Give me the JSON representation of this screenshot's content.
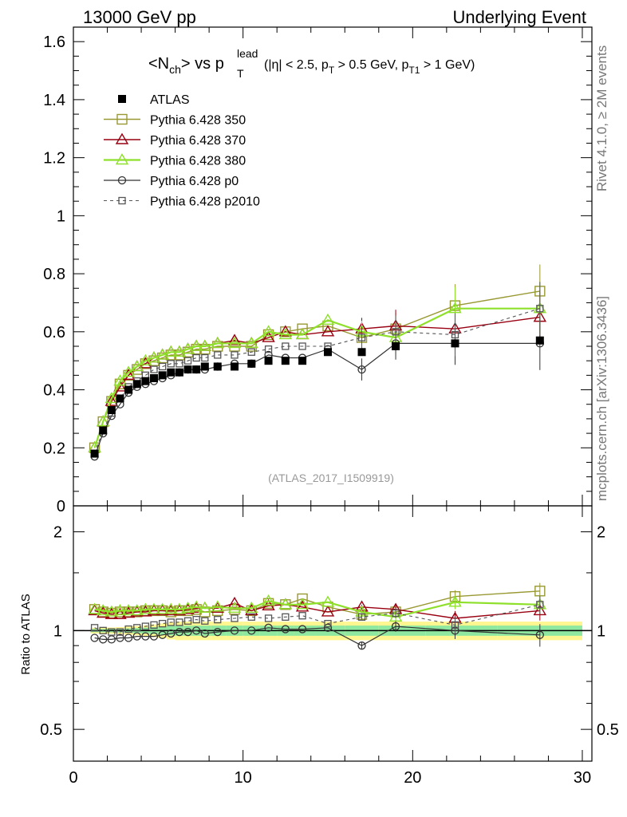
{
  "header": {
    "left": "13000 GeV pp",
    "right": "Underlying Event"
  },
  "side_labels": {
    "rivet": "Rivet 4.1.0, ≥ 2M events",
    "mcplots": "mcplots.cern.ch [arXiv:1306.3436]"
  },
  "watermark": "(ATLAS_2017_I1509919)",
  "title": {
    "main": "<N",
    "main_sub": "ch",
    "main_mid": "> vs p",
    "pt_sup": "lead",
    "pt_sub": "T",
    "cuts_a": "(|η| < 2.5, p",
    "cuts_a_sub": "T",
    "cuts_b": " > 0.5 GeV, p",
    "cuts_b_sub": "T1",
    "cuts_c": " > 1 GeV)"
  },
  "colors": {
    "atlas": "#000000",
    "p350": "#999933",
    "p370": "#990011",
    "p380": "#8ee02b",
    "p0": "#333333",
    "p2010": "#555555",
    "band_inner": "#8ee8a0",
    "band_outer": "#fff68f"
  },
  "chart_data": {
    "type": "scatter",
    "xlabel": "",
    "ylabel": "",
    "xlim": [
      0,
      30
    ],
    "ylim": [
      0,
      1.65
    ],
    "ratio_ylabel": "Ratio to ATLAS",
    "ratio_ylim": [
      0.4,
      2.4
    ],
    "main_y_ticks": [
      "0",
      "0.2",
      "0.4",
      "0.6",
      "0.8",
      "1",
      "1.2",
      "1.4",
      "1.6"
    ],
    "x_ticks": [
      "0",
      "10",
      "20",
      "30"
    ],
    "ratio_y_ticks": [
      "0.5",
      "1",
      "2"
    ],
    "x": [
      1.25,
      1.75,
      2.25,
      2.75,
      3.25,
      3.75,
      4.25,
      4.75,
      5.25,
      5.75,
      6.25,
      6.75,
      7.25,
      7.75,
      8.5,
      9.5,
      10.5,
      11.5,
      12.5,
      13.5,
      15.0,
      17.0,
      19.0,
      22.5,
      27.5
    ],
    "series": [
      {
        "name": "ATLAS",
        "key": "atlas",
        "values": [
          0.18,
          0.26,
          0.33,
          0.37,
          0.4,
          0.42,
          0.43,
          0.44,
          0.45,
          0.46,
          0.46,
          0.47,
          0.47,
          0.48,
          0.48,
          0.48,
          0.49,
          0.5,
          0.5,
          0.5,
          0.53,
          0.53,
          0.55,
          0.56,
          0.57
        ]
      },
      {
        "name": "Pythia 6.428 350",
        "key": "p350",
        "values": [
          0.2,
          0.29,
          0.36,
          0.42,
          0.45,
          0.47,
          0.49,
          0.5,
          0.51,
          0.52,
          0.52,
          0.53,
          0.54,
          0.54,
          0.55,
          0.55,
          0.55,
          0.59,
          0.6,
          0.61,
          0.62,
          0.58,
          0.61,
          0.69,
          0.74
        ]
      },
      {
        "name": "Pythia 6.428 370",
        "key": "p370",
        "values": [
          0.2,
          0.29,
          0.36,
          0.41,
          0.45,
          0.48,
          0.49,
          0.51,
          0.52,
          0.53,
          0.53,
          0.54,
          0.55,
          0.55,
          0.56,
          0.57,
          0.56,
          0.58,
          0.6,
          0.59,
          0.6,
          0.61,
          0.62,
          0.61,
          0.65
        ]
      },
      {
        "name": "Pythia 6.428 380",
        "key": "p380",
        "values": [
          0.2,
          0.29,
          0.37,
          0.43,
          0.46,
          0.48,
          0.5,
          0.51,
          0.52,
          0.53,
          0.53,
          0.54,
          0.55,
          0.55,
          0.56,
          0.56,
          0.56,
          0.6,
          0.59,
          0.59,
          0.64,
          0.6,
          0.58,
          0.68,
          0.68
        ]
      },
      {
        "name": "Pythia 6.428 p0",
        "key": "p0",
        "values": [
          0.17,
          0.25,
          0.31,
          0.35,
          0.39,
          0.41,
          0.42,
          0.43,
          0.44,
          0.45,
          0.46,
          0.47,
          0.47,
          0.47,
          0.48,
          0.49,
          0.49,
          0.52,
          0.51,
          0.51,
          0.54,
          0.47,
          0.56,
          0.56,
          0.56
        ]
      },
      {
        "name": "Pythia 6.428 p2010",
        "key": "p2010",
        "values": [
          0.18,
          0.26,
          0.32,
          0.37,
          0.41,
          0.43,
          0.45,
          0.47,
          0.48,
          0.49,
          0.49,
          0.5,
          0.51,
          0.51,
          0.52,
          0.52,
          0.53,
          0.54,
          0.55,
          0.55,
          0.55,
          0.58,
          0.6,
          0.59,
          0.68
        ]
      }
    ],
    "ratio_series": [
      {
        "name": "Pythia 6.428 350",
        "key": "p350",
        "values": [
          1.16,
          1.14,
          1.13,
          1.14,
          1.14,
          1.14,
          1.15,
          1.15,
          1.15,
          1.14,
          1.15,
          1.15,
          1.16,
          1.14,
          1.15,
          1.16,
          1.15,
          1.21,
          1.2,
          1.25,
          1.18,
          1.12,
          1.14,
          1.27,
          1.32
        ]
      },
      {
        "name": "Pythia 6.428 370",
        "key": "p370",
        "values": [
          1.15,
          1.13,
          1.12,
          1.12,
          1.13,
          1.14,
          1.14,
          1.15,
          1.15,
          1.15,
          1.15,
          1.16,
          1.17,
          1.17,
          1.17,
          1.21,
          1.15,
          1.19,
          1.2,
          1.18,
          1.14,
          1.18,
          1.16,
          1.09,
          1.15
        ]
      },
      {
        "name": "Pythia 6.428 380",
        "key": "p380",
        "values": [
          1.16,
          1.15,
          1.14,
          1.15,
          1.15,
          1.15,
          1.16,
          1.16,
          1.16,
          1.16,
          1.16,
          1.17,
          1.18,
          1.17,
          1.18,
          1.17,
          1.17,
          1.23,
          1.2,
          1.2,
          1.22,
          1.14,
          1.1,
          1.22,
          1.2
        ]
      },
      {
        "name": "Pythia 6.428 p0",
        "key": "p0",
        "values": [
          0.95,
          0.94,
          0.94,
          0.95,
          0.95,
          0.96,
          0.96,
          0.96,
          0.97,
          0.98,
          0.99,
          0.99,
          1.0,
          0.98,
          0.99,
          1.0,
          1.0,
          1.02,
          1.01,
          1.01,
          1.02,
          0.9,
          1.03,
          1.0,
          0.97
        ]
      },
      {
        "name": "Pythia 6.428 p2010",
        "key": "p2010",
        "values": [
          1.02,
          1.0,
          0.99,
          0.99,
          1.01,
          1.02,
          1.03,
          1.04,
          1.05,
          1.06,
          1.06,
          1.07,
          1.08,
          1.07,
          1.08,
          1.09,
          1.1,
          1.09,
          1.1,
          1.11,
          1.05,
          1.1,
          1.13,
          1.04,
          1.2
        ]
      }
    ]
  }
}
